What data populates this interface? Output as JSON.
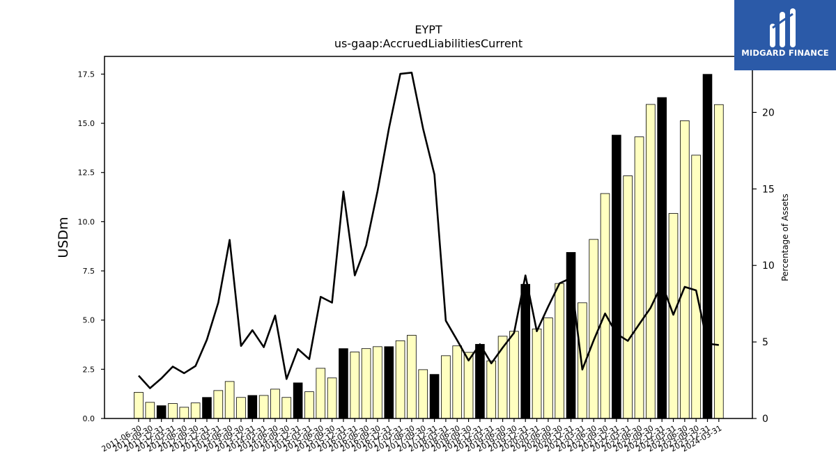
{
  "chart_data": {
    "type": "bar",
    "title": "EYPT",
    "subtitle": "us-gaap:AccruedLiabilitiesCurrent",
    "ylabel": "USDm",
    "y2label": "Percentage of Assets",
    "ylim": [
      0,
      18.4
    ],
    "y2lim": [
      0,
      23.66
    ],
    "yticks": [
      "0.0",
      "2.5",
      "5.0",
      "7.5",
      "10.0",
      "12.5",
      "15.0",
      "17.5"
    ],
    "y2ticks": [
      "0",
      "5",
      "10",
      "15",
      "20"
    ],
    "categories": [
      "2011-06-30",
      "2011-09-30",
      "2011-12-31",
      "2012-03-31",
      "2012-06-30",
      "2012-09-30",
      "2012-12-31",
      "2013-03-31",
      "2013-06-30",
      "2013-09-30",
      "2013-12-31",
      "2014-03-31",
      "2014-06-30",
      "2014-09-30",
      "2014-12-31",
      "2015-03-31",
      "2015-06-30",
      "2015-09-30",
      "2015-12-31",
      "2016-03-31",
      "2016-06-30",
      "2016-09-30",
      "2016-12-31",
      "2017-03-31",
      "2017-06-30",
      "2017-09-30",
      "2017-12-31",
      "2018-03-31",
      "2018-06-30",
      "2018-09-30",
      "2018-12-31",
      "2019-03-31",
      "2019-06-30",
      "2019-09-30",
      "2019-12-31",
      "2020-03-31",
      "2020-06-30",
      "2020-09-30",
      "2020-12-31",
      "2021-03-31",
      "2021-06-30",
      "2021-09-30",
      "2021-12-31",
      "2022-03-31",
      "2022-06-30",
      "2022-09-30",
      "2022-12-31",
      "2023-03-31",
      "2023-06-30",
      "2023-09-30",
      "2023-12-31",
      "2024-03-31"
    ],
    "series": [
      {
        "type": "bar",
        "values": [
          1.33,
          0.82,
          0.65,
          0.76,
          0.57,
          0.79,
          1.07,
          1.42,
          1.88,
          1.07,
          1.17,
          1.17,
          1.49,
          1.07,
          1.81,
          1.36,
          2.55,
          2.06,
          3.55,
          3.38,
          3.55,
          3.65,
          3.65,
          3.95,
          4.23,
          2.48,
          2.24,
          3.19,
          3.69,
          3.36,
          3.77,
          2.93,
          4.18,
          4.43,
          6.82,
          4.55,
          5.11,
          6.86,
          8.44,
          5.88,
          9.1,
          11.43,
          14.4,
          12.33,
          14.31,
          15.96,
          16.31,
          10.42,
          15.13,
          13.38,
          17.49,
          15.95
        ],
        "highlight": [
          false,
          false,
          true,
          false,
          false,
          false,
          true,
          false,
          false,
          false,
          true,
          false,
          false,
          false,
          true,
          false,
          false,
          false,
          true,
          false,
          false,
          false,
          true,
          false,
          false,
          false,
          true,
          false,
          false,
          false,
          true,
          false,
          false,
          false,
          true,
          false,
          false,
          false,
          true,
          false,
          false,
          false,
          true,
          false,
          false,
          false,
          true,
          false,
          false,
          false,
          true,
          false
        ],
        "fill": "#ffffc0",
        "highlight_fill": "#000000"
      },
      {
        "type": "line",
        "axis": "right",
        "values": [
          2.8,
          1.98,
          2.62,
          3.39,
          2.96,
          3.43,
          5.15,
          7.57,
          11.67,
          4.74,
          5.77,
          4.66,
          6.73,
          2.58,
          4.54,
          3.88,
          7.95,
          7.57,
          14.83,
          9.35,
          11.31,
          14.86,
          18.95,
          22.52,
          22.6,
          18.95,
          15.94,
          6.39,
          5.11,
          3.79,
          4.85,
          3.6,
          4.63,
          5.59,
          9.35,
          5.7,
          7.31,
          8.83,
          9.18,
          3.2,
          5.11,
          6.86,
          5.54,
          5.07,
          6.16,
          7.23,
          8.79,
          6.78,
          8.6,
          8.37,
          4.89,
          4.8
        ],
        "color": "#000000"
      }
    ],
    "grid": false,
    "legend": "none"
  },
  "branding": {
    "logo_text": "MIDGARD FINANCE",
    "logo_color": "#2b5aa8"
  }
}
